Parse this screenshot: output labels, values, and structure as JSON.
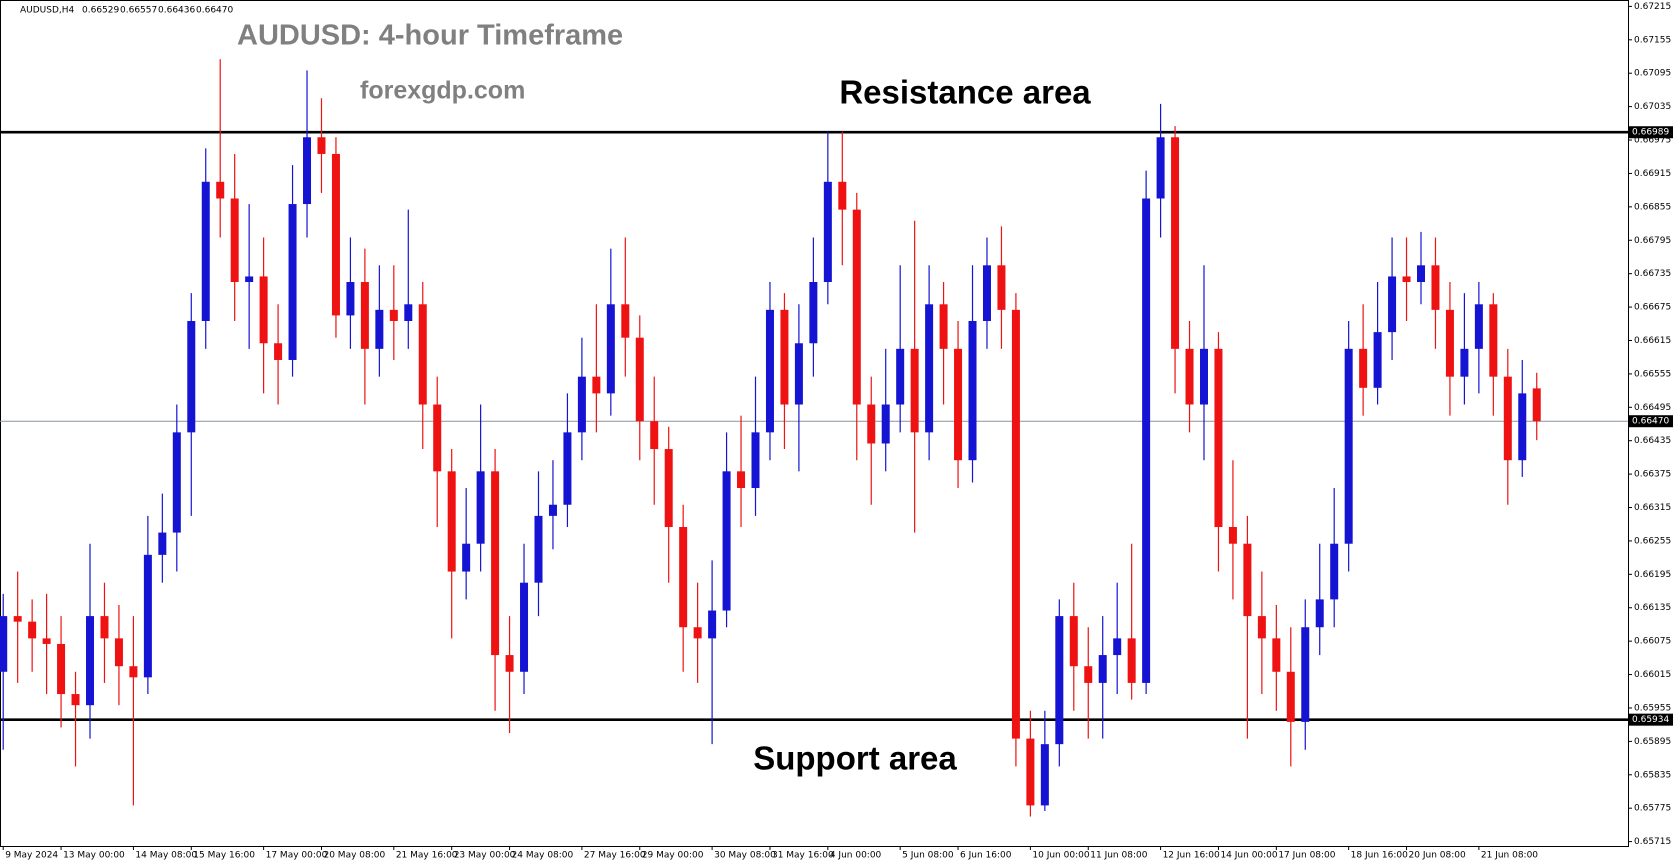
{
  "chart_data": {
    "type": "candlestick",
    "header": {
      "symbol": "AUDUSD,H4",
      "ohlc": [
        "0.66529",
        "0.66557",
        "0.66436",
        "0.66470"
      ]
    },
    "title": "AUDUSD: 4-hour Timeframe",
    "subtitle": "forexgdp.com",
    "annotations": {
      "resistance": "Resistance area",
      "support": "Support area"
    },
    "up_color": "#1414d2",
    "down_color": "#ee1212",
    "resistance": 0.66989,
    "support": 0.65934,
    "last_price": {
      "value": 0.6647,
      "label": "0.66470"
    },
    "ylim": [
      0.65715,
      0.67215
    ],
    "yticks": [
      0.67215,
      0.67155,
      0.67095,
      0.67035,
      0.66975,
      0.66915,
      0.66855,
      0.66795,
      0.66735,
      0.66675,
      0.66615,
      0.66555,
      0.66495,
      0.66435,
      0.66375,
      0.66315,
      0.66255,
      0.66195,
      0.66135,
      0.66075,
      0.66015,
      0.65955,
      0.65895,
      0.65835,
      0.65775,
      0.65715
    ],
    "categories": [
      "9 May 2024",
      null,
      null,
      null,
      "13 May 00:00",
      null,
      null,
      null,
      null,
      "14 May 08:00",
      null,
      null,
      null,
      "15 May 16:00",
      null,
      null,
      null,
      null,
      "17 May 00:00",
      null,
      null,
      null,
      "20 May 08:00",
      null,
      null,
      null,
      null,
      "21 May 16:00",
      null,
      null,
      null,
      "23 May 00:00",
      null,
      null,
      null,
      "24 May 08:00",
      null,
      null,
      null,
      null,
      "27 May 16:00",
      null,
      null,
      null,
      "29 May 00:00",
      null,
      null,
      null,
      null,
      "30 May 08:00",
      null,
      null,
      null,
      "31 May 16:00",
      null,
      null,
      null,
      "4 Jun 00:00",
      null,
      null,
      null,
      null,
      "5 Jun 08:00",
      null,
      null,
      null,
      "6 Jun 16:00",
      null,
      null,
      null,
      null,
      "10 Jun 00:00",
      null,
      null,
      null,
      "11 Jun 08:00",
      null,
      null,
      null,
      null,
      "12 Jun 16:00",
      null,
      null,
      null,
      "14 Jun 00:00",
      null,
      null,
      null,
      "17 Jun 08:00",
      null,
      null,
      null,
      null,
      "18 Jun 16:00",
      null,
      null,
      null,
      "20 Jun 08:00",
      null,
      null,
      null,
      null,
      "21 Jun 08:00",
      null,
      null,
      null,
      null
    ],
    "open": [
      0.6602,
      0.6612,
      0.6611,
      0.6608,
      0.6607,
      0.6598,
      0.6596,
      0.6612,
      0.6608,
      0.6603,
      0.6601,
      0.6623,
      0.6627,
      0.6645,
      0.6665,
      0.669,
      0.6687,
      0.6672,
      0.6673,
      0.6661,
      0.6658,
      0.6686,
      0.6698,
      0.6695,
      0.6666,
      0.6672,
      0.666,
      0.6667,
      0.6665,
      0.6668,
      0.665,
      0.6638,
      0.662,
      0.6625,
      0.6638,
      0.6605,
      0.6602,
      0.6618,
      0.663,
      0.6632,
      0.6645,
      0.6655,
      0.6652,
      0.6668,
      0.6662,
      0.6647,
      0.6642,
      0.6628,
      0.661,
      0.6608,
      0.6613,
      0.6638,
      0.6635,
      0.6645,
      0.6667,
      0.665,
      0.6661,
      0.6672,
      0.669,
      0.6685,
      0.665,
      0.6643,
      0.665,
      0.666,
      0.6645,
      0.6668,
      0.666,
      0.664,
      0.6665,
      0.6675,
      0.6667,
      0.659,
      0.6578,
      0.6589,
      0.6612,
      0.6603,
      0.66,
      0.6605,
      0.6608,
      0.66,
      0.6687,
      0.6698,
      0.666,
      0.665,
      0.666,
      0.6628,
      0.6625,
      0.6612,
      0.6608,
      0.6602,
      0.6593,
      0.661,
      0.6615,
      0.6625,
      0.666,
      0.6653,
      0.6663,
      0.6673,
      0.6672,
      0.6675,
      0.6667,
      0.6655,
      0.666,
      0.6668,
      0.6655,
      0.664,
      0.66529
    ],
    "high": [
      0.6616,
      0.662,
      0.6615,
      0.6616,
      0.6612,
      0.6602,
      0.6625,
      0.6618,
      0.6614,
      0.6612,
      0.663,
      0.6634,
      0.665,
      0.667,
      0.6696,
      0.6712,
      0.6695,
      0.6686,
      0.668,
      0.6668,
      0.6693,
      0.671,
      0.6705,
      0.6698,
      0.668,
      0.6678,
      0.6675,
      0.6675,
      0.6685,
      0.6672,
      0.6655,
      0.6642,
      0.6635,
      0.665,
      0.6642,
      0.6612,
      0.6625,
      0.6638,
      0.664,
      0.6652,
      0.6662,
      0.6668,
      0.6678,
      0.668,
      0.6666,
      0.6655,
      0.6646,
      0.6632,
      0.6618,
      0.6622,
      0.6645,
      0.6648,
      0.6655,
      0.6672,
      0.667,
      0.6668,
      0.668,
      0.6699,
      0.6699,
      0.6688,
      0.6655,
      0.666,
      0.6675,
      0.6683,
      0.6675,
      0.6672,
      0.6665,
      0.6675,
      0.668,
      0.6682,
      0.667,
      0.6595,
      0.6595,
      0.6615,
      0.6618,
      0.661,
      0.6612,
      0.6618,
      0.6625,
      0.6692,
      0.6704,
      0.67,
      0.6665,
      0.6675,
      0.6663,
      0.664,
      0.663,
      0.662,
      0.6614,
      0.661,
      0.6615,
      0.6625,
      0.6635,
      0.6665,
      0.6668,
      0.6672,
      0.668,
      0.668,
      0.6681,
      0.668,
      0.6672,
      0.667,
      0.6672,
      0.667,
      0.666,
      0.6658,
      0.66557
    ],
    "low": [
      0.6588,
      0.66,
      0.6602,
      0.6598,
      0.6592,
      0.6585,
      0.659,
      0.66,
      0.6596,
      0.6578,
      0.6598,
      0.6618,
      0.662,
      0.663,
      0.666,
      0.668,
      0.6665,
      0.666,
      0.6652,
      0.665,
      0.6655,
      0.668,
      0.6688,
      0.6662,
      0.666,
      0.665,
      0.6655,
      0.6658,
      0.666,
      0.6642,
      0.6628,
      0.6608,
      0.6615,
      0.662,
      0.6595,
      0.6591,
      0.6598,
      0.6612,
      0.6624,
      0.6628,
      0.664,
      0.6645,
      0.6648,
      0.6655,
      0.664,
      0.6632,
      0.6618,
      0.6602,
      0.66,
      0.6589,
      0.661,
      0.6628,
      0.663,
      0.664,
      0.6642,
      0.6638,
      0.6655,
      0.6668,
      0.6675,
      0.664,
      0.6632,
      0.6638,
      0.6645,
      0.6627,
      0.664,
      0.665,
      0.6635,
      0.6636,
      0.666,
      0.666,
      0.6585,
      0.6576,
      0.6577,
      0.6585,
      0.6595,
      0.659,
      0.659,
      0.6598,
      0.6597,
      0.6598,
      0.668,
      0.6652,
      0.6645,
      0.664,
      0.662,
      0.6615,
      0.659,
      0.6598,
      0.6595,
      0.6585,
      0.6588,
      0.6605,
      0.661,
      0.662,
      0.6648,
      0.665,
      0.6658,
      0.6665,
      0.6668,
      0.666,
      0.6648,
      0.665,
      0.6652,
      0.6648,
      0.6632,
      0.6637,
      0.66436
    ],
    "close": [
      0.6612,
      0.6611,
      0.6608,
      0.6607,
      0.6598,
      0.6596,
      0.6612,
      0.6608,
      0.6603,
      0.6601,
      0.6623,
      0.6627,
      0.6645,
      0.6665,
      0.669,
      0.6687,
      0.6672,
      0.6673,
      0.6661,
      0.6658,
      0.6686,
      0.6698,
      0.6695,
      0.6666,
      0.6672,
      0.666,
      0.6667,
      0.6665,
      0.6668,
      0.665,
      0.6638,
      0.662,
      0.6625,
      0.6638,
      0.6605,
      0.6602,
      0.6618,
      0.663,
      0.6632,
      0.6645,
      0.6655,
      0.6652,
      0.6668,
      0.6662,
      0.6647,
      0.6642,
      0.6628,
      0.661,
      0.6608,
      0.6613,
      0.6638,
      0.6635,
      0.6645,
      0.6667,
      0.665,
      0.6661,
      0.6672,
      0.669,
      0.6685,
      0.665,
      0.6643,
      0.665,
      0.666,
      0.6645,
      0.6668,
      0.666,
      0.664,
      0.6665,
      0.6675,
      0.6667,
      0.659,
      0.6578,
      0.6589,
      0.6612,
      0.6603,
      0.66,
      0.6605,
      0.6608,
      0.66,
      0.6687,
      0.6698,
      0.666,
      0.665,
      0.666,
      0.6628,
      0.6625,
      0.6612,
      0.6608,
      0.6602,
      0.6593,
      0.661,
      0.6615,
      0.6625,
      0.666,
      0.6653,
      0.6663,
      0.6673,
      0.6672,
      0.6675,
      0.6667,
      0.6655,
      0.666,
      0.6668,
      0.6655,
      0.664,
      0.6652,
      0.6647
    ]
  }
}
